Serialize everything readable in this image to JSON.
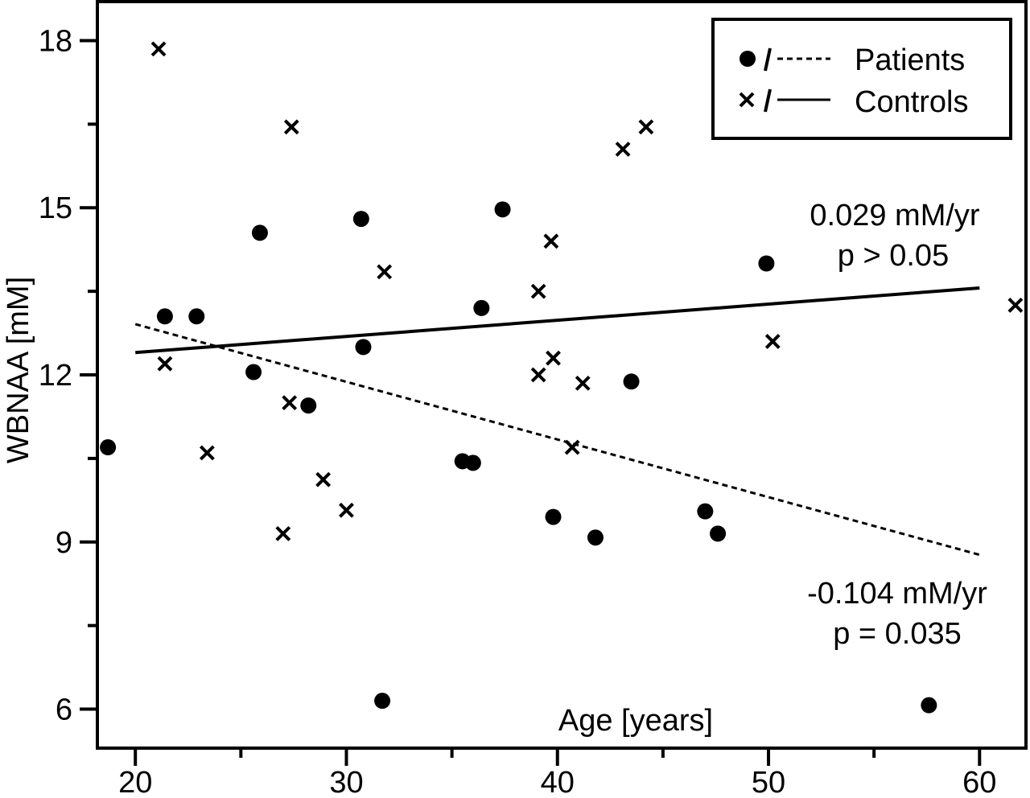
{
  "chart_data": {
    "type": "scatter",
    "xlabel": "Age [years]",
    "ylabel": "WBNAA [mM]",
    "xlim": [
      18.2,
      62.2
    ],
    "ylim": [
      5.3,
      18.7
    ],
    "xticks": [
      20,
      30,
      40,
      50,
      60
    ],
    "yticks": [
      6,
      9,
      12,
      15,
      18
    ],
    "x_minor_step": 5,
    "y_minor_step": 1.5,
    "grid": false,
    "legend_position": "top-right",
    "series": [
      {
        "name": "Patients",
        "marker": "circle",
        "line_style": "dashed",
        "points": [
          [
            18.7,
            10.7
          ],
          [
            21.4,
            13.05
          ],
          [
            22.9,
            13.05
          ],
          [
            25.9,
            14.55
          ],
          [
            25.6,
            12.05
          ],
          [
            28.2,
            11.45
          ],
          [
            30.7,
            14.8
          ],
          [
            30.8,
            12.5
          ],
          [
            31.7,
            6.15
          ],
          [
            35.5,
            10.45
          ],
          [
            36.0,
            10.42
          ],
          [
            36.4,
            13.2
          ],
          [
            37.4,
            14.97
          ],
          [
            39.8,
            9.45
          ],
          [
            41.8,
            9.08
          ],
          [
            43.5,
            11.88
          ],
          [
            47.0,
            9.55
          ],
          [
            47.6,
            9.15
          ],
          [
            49.9,
            14.0
          ],
          [
            57.6,
            6.07
          ]
        ],
        "fit": {
          "x": [
            20,
            60
          ],
          "y": [
            12.91,
            8.77
          ]
        }
      },
      {
        "name": "Controls",
        "marker": "x",
        "line_style": "solid",
        "points": [
          [
            21.1,
            17.85
          ],
          [
            21.4,
            12.2
          ],
          [
            23.4,
            10.6
          ],
          [
            27.0,
            9.15
          ],
          [
            27.3,
            11.5
          ],
          [
            27.4,
            16.45
          ],
          [
            28.9,
            10.12
          ],
          [
            30.0,
            9.57
          ],
          [
            31.8,
            13.85
          ],
          [
            39.1,
            13.5
          ],
          [
            39.1,
            12.0
          ],
          [
            39.7,
            14.4
          ],
          [
            39.8,
            12.3
          ],
          [
            40.7,
            10.7
          ],
          [
            41.2,
            11.85
          ],
          [
            43.1,
            16.05
          ],
          [
            44.2,
            16.45
          ],
          [
            50.2,
            12.6
          ],
          [
            61.7,
            13.25
          ]
        ],
        "fit": {
          "x": [
            20,
            60
          ],
          "y": [
            12.4,
            13.56
          ]
        }
      }
    ],
    "annotations": [
      {
        "lines": [
          "0.029 mM/yr",
          "p > 0.05"
        ],
        "series": "Controls"
      },
      {
        "lines": [
          "-0.104 mM/yr",
          "p = 0.035"
        ],
        "series": "Patients"
      }
    ],
    "legend": {
      "entries": [
        {
          "label": "Patients",
          "marker": "circle",
          "line_style": "dashed"
        },
        {
          "label": "Controls",
          "marker": "x",
          "line_style": "solid"
        }
      ]
    }
  }
}
